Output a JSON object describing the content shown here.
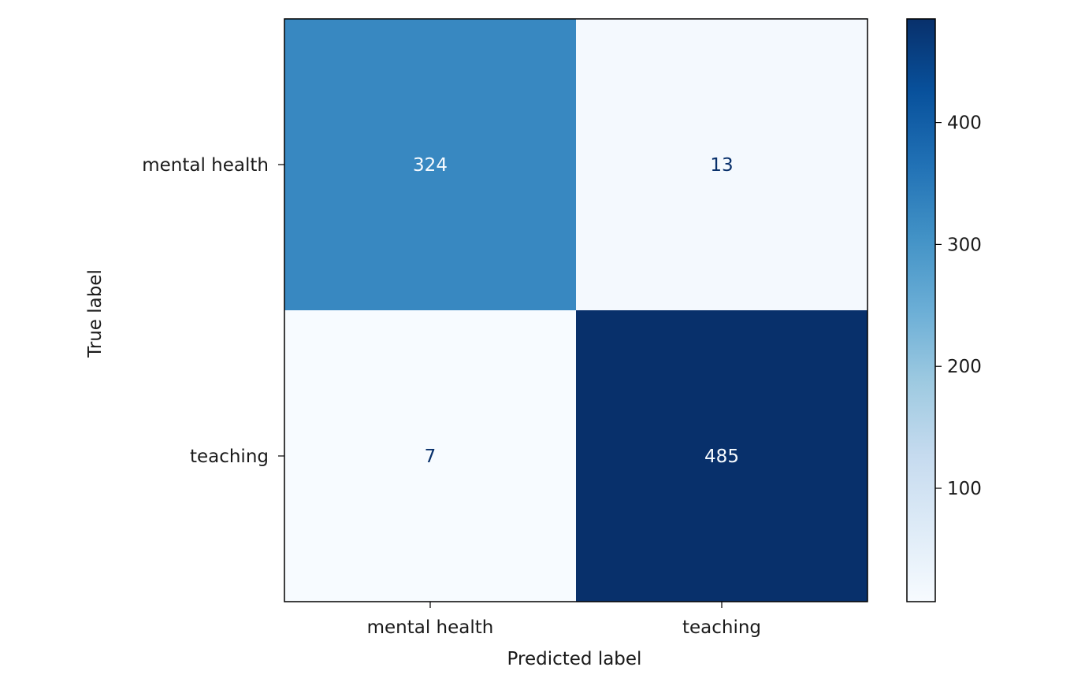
{
  "chart_data": {
    "type": "heatmap",
    "title": "",
    "xlabel": "Predicted label",
    "ylabel": "True label",
    "x_categories": [
      "mental health",
      "teaching"
    ],
    "y_categories": [
      "mental health",
      "teaching"
    ],
    "matrix": [
      [
        324,
        13
      ],
      [
        7,
        485
      ]
    ],
    "colormap": "Blues",
    "colorbar": {
      "range": [
        7,
        485
      ],
      "ticks": [
        100,
        200,
        300,
        400
      ],
      "tick_labels": [
        "100",
        "200",
        "300",
        "400"
      ]
    },
    "colors": {
      "low": "#f7fbff",
      "high": "#08306b",
      "text_dark": "#08306b",
      "text_light": "#f7fbff"
    },
    "grid": false,
    "legend": "colorbar-right"
  }
}
